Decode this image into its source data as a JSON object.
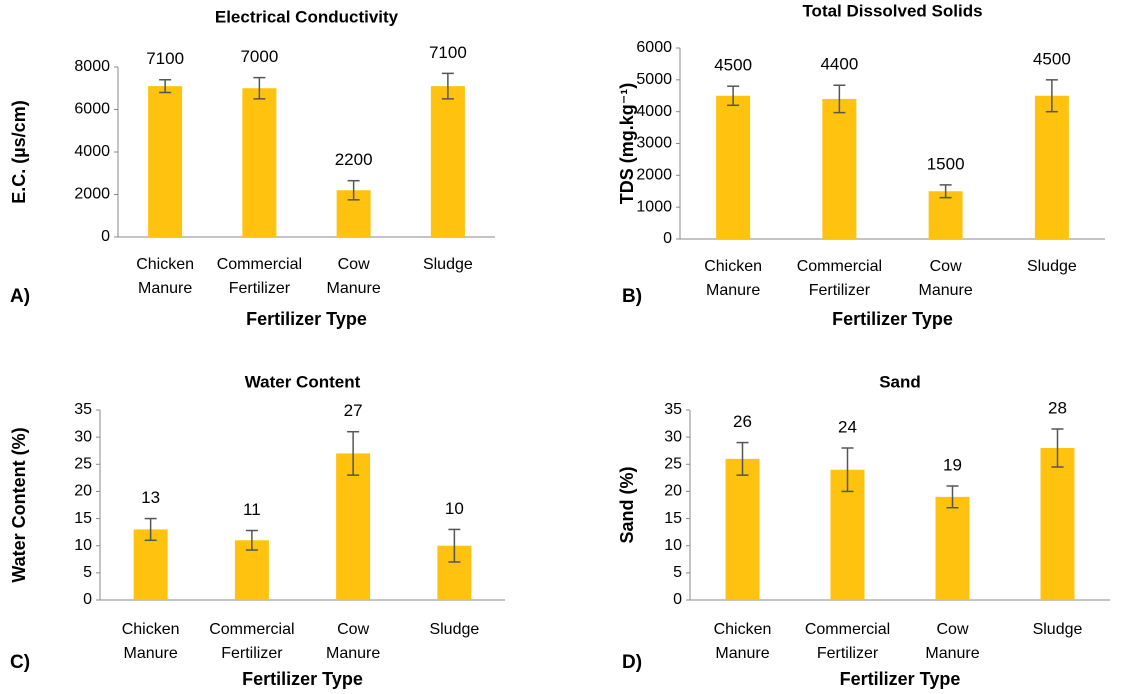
{
  "chart_data": [
    {
      "type": "bar",
      "panel_label": "A)",
      "title": "Electrical Conductivity",
      "x_label": "Fertilizer Type",
      "y_label": "E.C. (µs/cm)",
      "categories": [
        "Chicken Manure",
        "Commercial Fertilizer",
        "Cow Manure",
        "Sludge"
      ],
      "values": [
        7100,
        7000,
        2200,
        7100
      ],
      "errors": [
        300,
        500,
        450,
        600
      ],
      "color": "#ffc20e",
      "ylim": [
        0,
        8000
      ],
      "yticks": [
        0,
        2000,
        4000,
        6000,
        8000
      ]
    },
    {
      "type": "bar",
      "panel_label": "B)",
      "title": "Total Dissolved Solids",
      "x_label": "Fertilizer Type",
      "y_label": "TDS (mg.kg⁻¹)",
      "categories": [
        "Chicken Manure",
        "Commercial Fertilizer",
        "Cow Manure",
        "Sludge"
      ],
      "values": [
        4500,
        4400,
        1500,
        4500
      ],
      "errors": [
        300,
        430,
        200,
        500
      ],
      "color": "#ffc20e",
      "ylim": [
        0,
        6000
      ],
      "yticks": [
        0,
        1000,
        2000,
        3000,
        4000,
        5000,
        6000
      ]
    },
    {
      "type": "bar",
      "panel_label": "C)",
      "title": "Water Content",
      "x_label": "Fertilizer Type",
      "y_label": "Water Content (%)",
      "categories": [
        "Chicken Manure",
        "Commercial Fertilizer",
        "Cow Manure",
        "Sludge"
      ],
      "values": [
        13,
        11,
        27,
        10
      ],
      "errors": [
        2,
        1.8,
        4,
        3
      ],
      "color": "#ffc20e",
      "ylim": [
        0,
        35
      ],
      "yticks": [
        0,
        5,
        10,
        15,
        20,
        25,
        30,
        35
      ]
    },
    {
      "type": "bar",
      "panel_label": "D)",
      "title": "Sand",
      "x_label": "Fertilizer Type",
      "y_label": "Sand (%)",
      "categories": [
        "Chicken Manure",
        "Commercial Fertilizer",
        "Cow Manure",
        "Sludge"
      ],
      "values": [
        26,
        24,
        19,
        28
      ],
      "errors": [
        3,
        4,
        2,
        3.5
      ],
      "color": "#ffc20e",
      "ylim": [
        0,
        35
      ],
      "yticks": [
        0,
        5,
        10,
        15,
        20,
        25,
        30,
        35
      ]
    }
  ]
}
